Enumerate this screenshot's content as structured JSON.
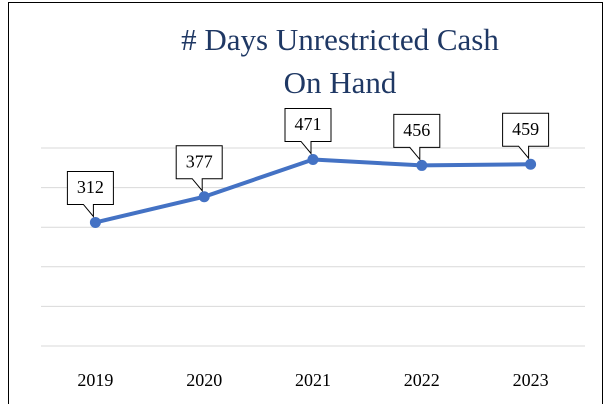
{
  "chart_data": {
    "type": "line",
    "title": [
      "# Days Unrestricted Cash",
      "On Hand"
    ],
    "categories": [
      "2019",
      "2020",
      "2021",
      "2022",
      "2023"
    ],
    "series": [
      {
        "color": "#4472c4",
        "values": [
          312,
          377,
          471,
          456,
          459
        ]
      }
    ],
    "ylim": [
      0,
      500
    ],
    "yticks": [
      0,
      100,
      200,
      300,
      400,
      500
    ],
    "grid": true
  }
}
